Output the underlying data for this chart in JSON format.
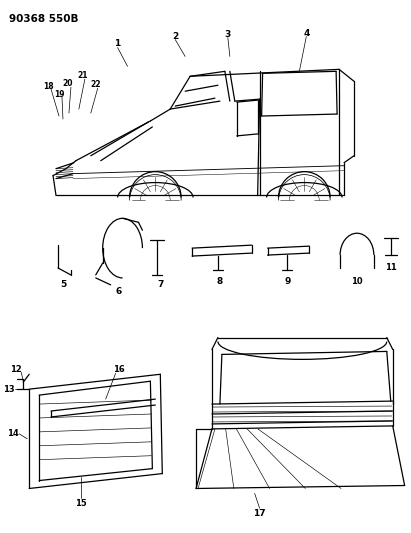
{
  "background_color": "#ffffff",
  "text_color": "#000000",
  "fig_width": 4.11,
  "fig_height": 5.33,
  "dpi": 100,
  "header_text": "90368 550B",
  "lw": 0.9
}
